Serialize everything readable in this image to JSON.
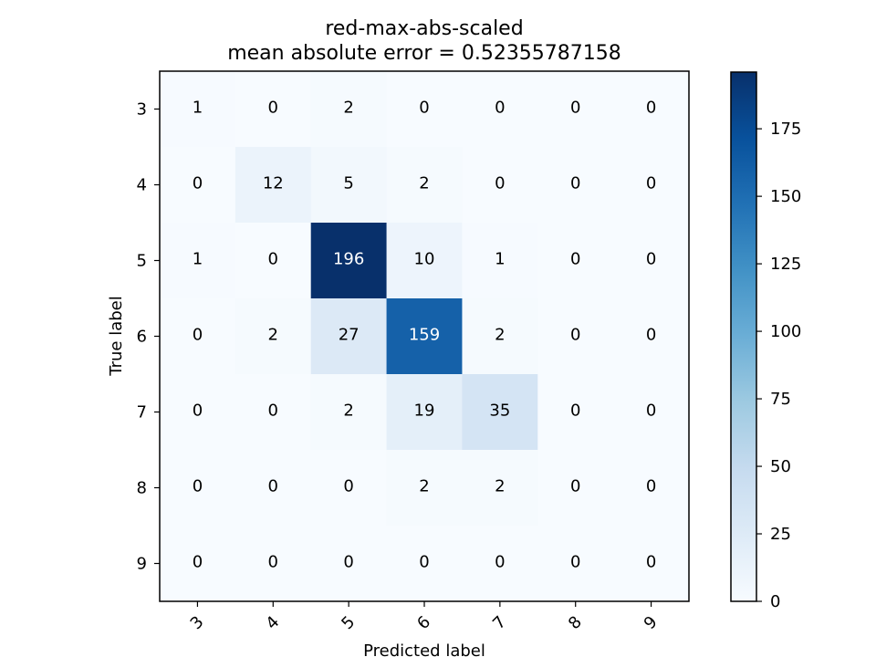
{
  "chart_data": {
    "type": "heatmap",
    "title": "red-max-abs-scaled",
    "subtitle": "mean absolute error = 0.52355787158",
    "xlabel": "Predicted label",
    "ylabel": "True label",
    "x_categories": [
      "3",
      "4",
      "5",
      "6",
      "7",
      "8",
      "9"
    ],
    "y_categories": [
      "3",
      "4",
      "5",
      "6",
      "7",
      "8",
      "9"
    ],
    "values": [
      [
        1,
        0,
        2,
        0,
        0,
        0,
        0
      ],
      [
        0,
        12,
        5,
        2,
        0,
        0,
        0
      ],
      [
        1,
        0,
        196,
        10,
        1,
        0,
        0
      ],
      [
        0,
        2,
        27,
        159,
        2,
        0,
        0
      ],
      [
        0,
        0,
        2,
        19,
        35,
        0,
        0
      ],
      [
        0,
        0,
        0,
        2,
        2,
        0,
        0
      ],
      [
        0,
        0,
        0,
        0,
        0,
        0,
        0
      ]
    ],
    "colormap": "Blues",
    "colormap_stops": [
      "#f7fbff",
      "#deebf7",
      "#c6dbef",
      "#9ecae1",
      "#6baed6",
      "#4292c6",
      "#2171b5",
      "#08519c",
      "#08306b"
    ],
    "colorbar": {
      "range": [
        0,
        196
      ],
      "ticks": [
        0,
        25,
        50,
        75,
        100,
        125,
        150,
        175
      ],
      "tick_labels": [
        "0",
        "25",
        "50",
        "75",
        "100",
        "125",
        "150",
        "175"
      ]
    },
    "text_threshold": 98,
    "grid": false
  }
}
